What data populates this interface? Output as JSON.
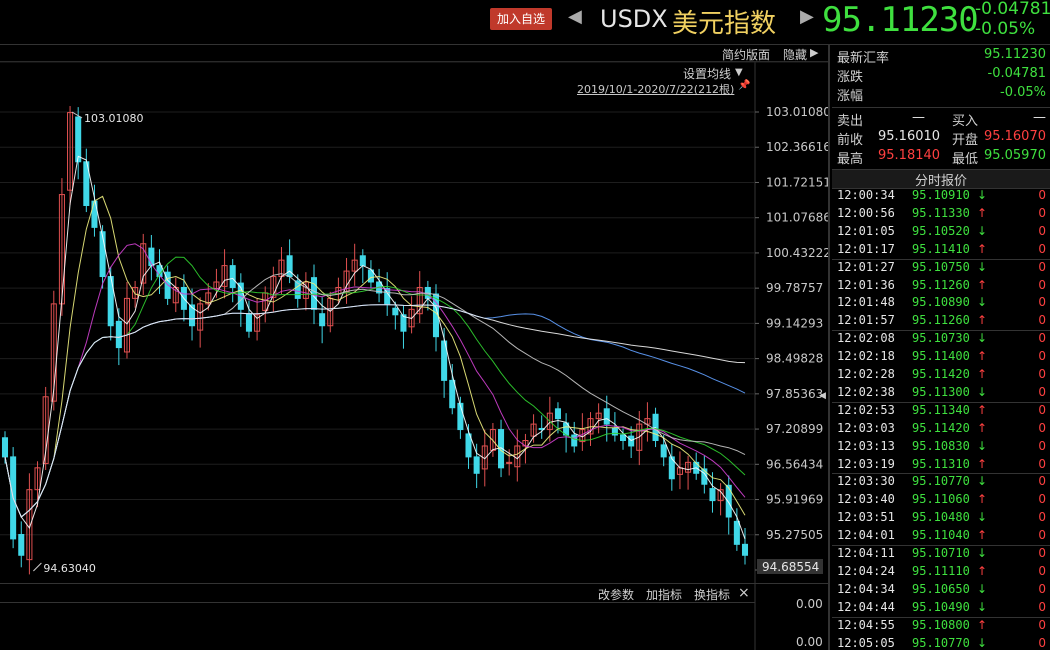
{
  "header": {
    "add_watchlist": "加入自选",
    "symbol": "USDX",
    "name": "美元指数",
    "price": "95.11230",
    "change": "-0.04781",
    "change_pct": "-0.05%",
    "prev_icon": "left-triangle-icon",
    "next_icon": "right-triangle-icon"
  },
  "toolbar": {
    "simple_layout": "简约版面",
    "hide": "隐藏",
    "set_ma": "设置均线",
    "range": "2019/10/1-2020/7/22(212根)",
    "pin_icon": "pin-icon",
    "indicator_buttons": [
      "改参数",
      "加指标",
      "换指标"
    ],
    "close": "×"
  },
  "quote": {
    "latest_label": "最新汇率",
    "latest": "95.11230",
    "change_label": "涨跌",
    "change": "-0.04781",
    "pct_label": "涨幅",
    "pct": "-0.05%",
    "sell_label": "卖出",
    "sell": "—",
    "buy_label": "买入",
    "buy": "—",
    "prev_label": "前收",
    "prev": "95.16010",
    "open_label": "开盘",
    "open": "95.16070",
    "high_label": "最高",
    "high": "95.18140",
    "low_label": "最低",
    "low": "95.05970",
    "ticks_title": "分时报价"
  },
  "ticks": [
    {
      "time": "12:00:34",
      "price": "95.10910",
      "dir": "down",
      "vol": "0"
    },
    {
      "time": "12:00:56",
      "price": "95.11330",
      "dir": "up",
      "vol": "0"
    },
    {
      "time": "12:01:05",
      "price": "95.10520",
      "dir": "down",
      "vol": "0"
    },
    {
      "time": "12:01:17",
      "price": "95.11410",
      "dir": "up",
      "vol": "0"
    },
    {
      "time": "12:01:27",
      "price": "95.10750",
      "dir": "down",
      "vol": "0"
    },
    {
      "time": "12:01:36",
      "price": "95.11260",
      "dir": "up",
      "vol": "0"
    },
    {
      "time": "12:01:48",
      "price": "95.10890",
      "dir": "down",
      "vol": "0"
    },
    {
      "time": "12:01:57",
      "price": "95.11260",
      "dir": "up",
      "vol": "0"
    },
    {
      "time": "12:02:08",
      "price": "95.10730",
      "dir": "down",
      "vol": "0"
    },
    {
      "time": "12:02:18",
      "price": "95.11400",
      "dir": "up",
      "vol": "0"
    },
    {
      "time": "12:02:28",
      "price": "95.11420",
      "dir": "up",
      "vol": "0"
    },
    {
      "time": "12:02:38",
      "price": "95.11300",
      "dir": "down",
      "vol": "0"
    },
    {
      "time": "12:02:53",
      "price": "95.11340",
      "dir": "up",
      "vol": "0"
    },
    {
      "time": "12:03:03",
      "price": "95.11420",
      "dir": "up",
      "vol": "0"
    },
    {
      "time": "12:03:13",
      "price": "95.10830",
      "dir": "down",
      "vol": "0"
    },
    {
      "time": "12:03:19",
      "price": "95.11310",
      "dir": "up",
      "vol": "0"
    },
    {
      "time": "12:03:30",
      "price": "95.10770",
      "dir": "down",
      "vol": "0"
    },
    {
      "time": "12:03:40",
      "price": "95.11060",
      "dir": "up",
      "vol": "0"
    },
    {
      "time": "12:03:51",
      "price": "95.10480",
      "dir": "down",
      "vol": "0"
    },
    {
      "time": "12:04:01",
      "price": "95.11040",
      "dir": "up",
      "vol": "0"
    },
    {
      "time": "12:04:11",
      "price": "95.10710",
      "dir": "down",
      "vol": "0"
    },
    {
      "time": "12:04:24",
      "price": "95.11110",
      "dir": "up",
      "vol": "0"
    },
    {
      "time": "12:04:34",
      "price": "95.10650",
      "dir": "down",
      "vol": "0"
    },
    {
      "time": "12:04:44",
      "price": "95.10490",
      "dir": "down",
      "vol": "0"
    },
    {
      "time": "12:04:55",
      "price": "95.10800",
      "dir": "up",
      "vol": "0"
    },
    {
      "time": "12:05:05",
      "price": "95.10770",
      "dir": "down",
      "vol": "0"
    }
  ],
  "chart_data": {
    "type": "candlestick",
    "y_ticks": [
      "103.01080",
      "102.36616",
      "101.72151",
      "101.07686",
      "100.43222",
      "99.78757",
      "99.14293",
      "98.49828",
      "97.85363",
      "97.20899",
      "96.56434",
      "95.91969",
      "95.27505",
      "94.63040"
    ],
    "ylim": [
      94.6304,
      103.0108
    ],
    "high_marker": "103.01080",
    "low_marker": "94.63040",
    "current_marker": "94.68554",
    "lower_panel_ticks": [
      "0.00",
      "0.00"
    ],
    "colors": {
      "up": "#e05050",
      "down": "#40d8e8",
      "ma5": "#ffffff",
      "ma10": "#f0f080",
      "ma20": "#d040d0",
      "ma30": "#30d030",
      "ma60": "#c8c8c8",
      "ma120": "#60a0ff",
      "ma250": "#f0f0f0"
    },
    "closes": [
      96.7,
      95.2,
      94.9,
      96.1,
      96.5,
      97.8,
      99.5,
      101.5,
      103.0,
      102.1,
      101.3,
      100.9,
      100.0,
      99.1,
      98.7,
      99.6,
      99.8,
      100.6,
      100.2,
      100.0,
      99.6,
      99.8,
      99.4,
      99.1,
      99.5,
      99.7,
      99.9,
      100.2,
      99.8,
      99.4,
      99.0,
      99.3,
      99.7,
      100.0,
      100.3,
      100.0,
      99.6,
      99.9,
      99.4,
      99.1,
      99.6,
      99.8,
      100.1,
      100.3,
      100.2,
      99.9,
      99.7,
      99.5,
      99.3,
      99.0,
      99.4,
      99.8,
      99.6,
      98.9,
      98.1,
      97.6,
      97.2,
      96.7,
      96.4,
      96.9,
      97.2,
      96.5,
      96.6,
      96.9,
      97.0,
      97.3,
      97.2,
      97.5,
      97.4,
      97.1,
      96.9,
      97.2,
      97.4,
      97.5,
      97.3,
      97.1,
      97.0,
      96.9,
      97.3,
      97.4,
      97.0,
      96.7,
      96.3,
      96.5,
      96.6,
      96.4,
      96.2,
      95.9,
      96.1,
      95.6,
      95.1,
      94.9
    ]
  }
}
